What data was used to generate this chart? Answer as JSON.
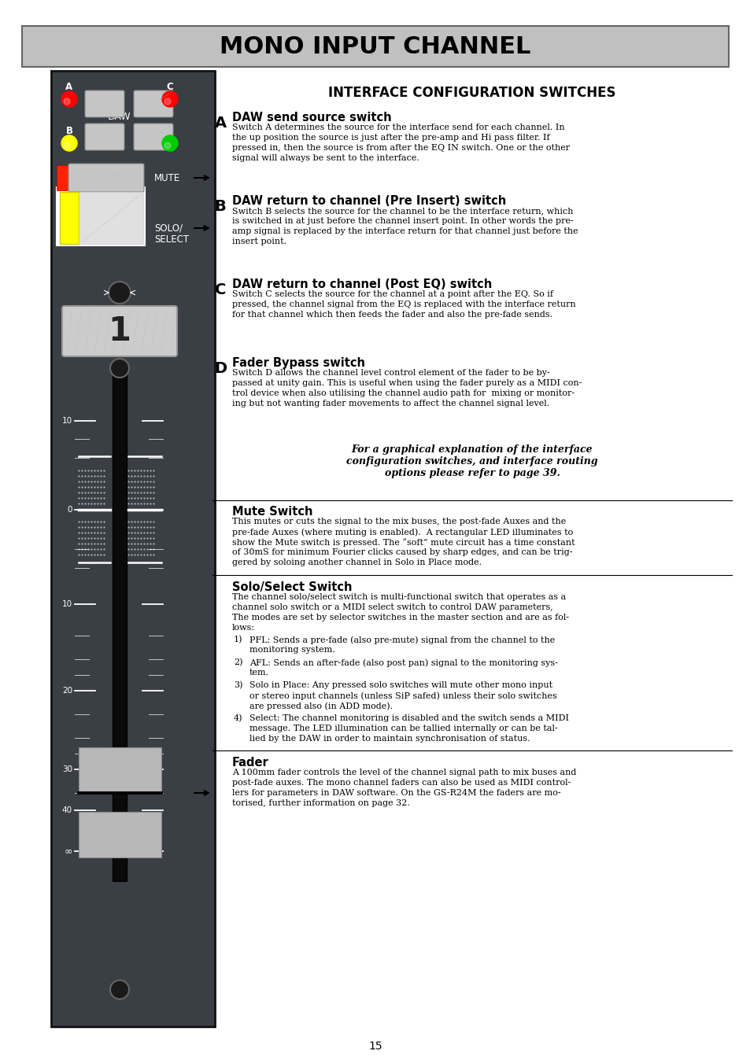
{
  "title": "MONO INPUT CHANNEL",
  "title_bg": "#c0c0c0",
  "title_color": "#000000",
  "page_bg": "#ffffff",
  "channel_bg": "#3a3f45",
  "section_header": "INTERFACE CONFIGURATION SWITCHES",
  "led_A_color": "#ff0000",
  "led_B_color": "#ffff00",
  "led_C_color": "#ff0000",
  "led_D_color": "#00cc00",
  "fader_label_inf": "∞",
  "body_text_sections": [
    {
      "heading": "DAW send source switch",
      "body": "Switch A determines the source for the interface send for each channel. In\nthe up position the source is just after the pre-amp and Hi pass filter. If\npressed in, then the source is from after the EQ IN switch. One or the other\nsignal will always be sent to the interface."
    },
    {
      "heading": "DAW return to channel (Pre Insert) switch",
      "body": "Switch B selects the source for the channel to be the interface return, which\nis switched in at just before the channel insert point. In other words the pre-\namp signal is replaced by the interface return for that channel just before the\ninsert point."
    },
    {
      "heading": "DAW return to channel (Post EQ) switch",
      "body": "Switch C selects the source for the channel at a point after the EQ. So if\npressed, the channel signal from the EQ is replaced with the interface return\nfor that channel which then feeds the fader and also the pre-fade sends."
    },
    {
      "heading": "Fader Bypass switch",
      "body": "Switch D allows the channel level control element of the fader to be by-\npassed at unity gain. This is useful when using the fader purely as a MIDI con-\ntrol device when also utilising the channel audio path for  mixing or monitor-\ning but not wanting fader movements to affect the channel signal level."
    }
  ],
  "bold_center_text": "For a graphical explanation of the interface\nconfiguration switches, and interface routing\noptions please refer to page 39.",
  "mute_section": {
    "heading": "Mute Switch",
    "body": "This mutes or cuts the signal to the mix buses, the post-fade Auxes and the\npre-fade Auxes (where muting is enabled).  A rectangular LED illuminates to\nshow the Mute switch is pressed. The “soft” mute circuit has a time constant\nof 30mS for minimum Fourier clicks caused by sharp edges, and can be trig-\ngered by soloing another channel in Solo in Place mode."
  },
  "solo_section": {
    "heading": "Solo/Select Switch",
    "body": "The channel solo/select switch is multi-functional switch that operates as a\nchannel solo switch or a MIDI select switch to control DAW parameters,\nThe modes are set by selector switches in the master section and are as fol-\nlows:",
    "items": [
      [
        "1)",
        "PFL: Sends a pre-fade (also pre-mute) signal from the channel to the",
        "monitoring system."
      ],
      [
        "2)",
        "AFL: Sends an after-fade (also post pan) signal to the monitoring sys-",
        "tem."
      ],
      [
        "3)",
        "Solo in Place: Any pressed solo switches will mute other mono input",
        "or stereo input channels (unless SiP safed) unless their solo switches",
        "are pressed also (in ADD mode)."
      ],
      [
        "4)",
        "Select: The channel monitoring is disabled and the switch sends a MIDI",
        "message. The LED illumination can be tallied internally or can be tal-",
        "lied by the DAW in order to maintain synchronisation of status."
      ]
    ]
  },
  "fader_section": {
    "heading": "Fader",
    "body": "A 100mm fader controls the level of the channel signal path to mix buses and\npost-fade auxes. The mono channel faders can also be used as MIDI control-\nlers for parameters in DAW software. On the GS-R24M the faders are mo-\ntorised, further information on page 32."
  },
  "page_number": "15"
}
